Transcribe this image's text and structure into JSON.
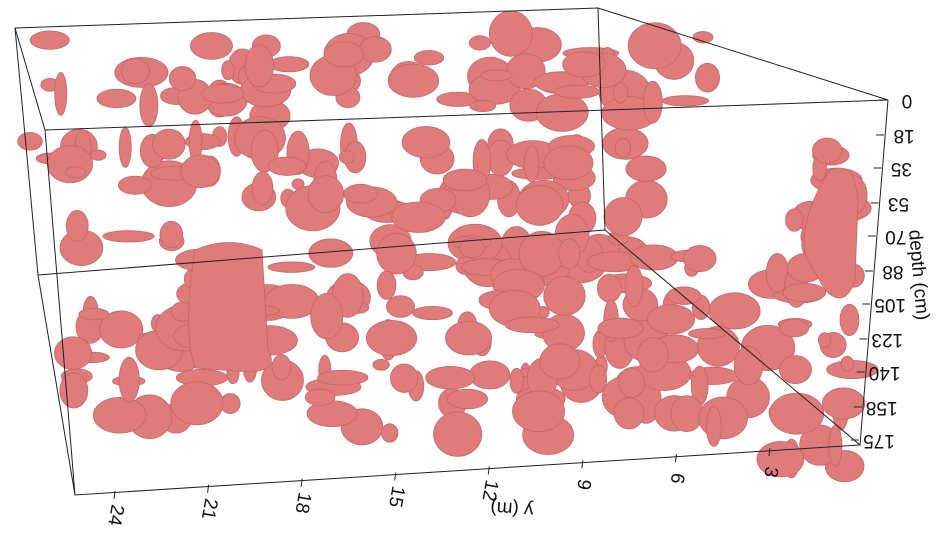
{
  "axes": {
    "depth": {
      "label": "depth (cm)",
      "ticks": [
        0,
        18,
        35,
        53,
        70,
        88,
        105,
        123,
        140,
        158,
        175
      ]
    },
    "y": {
      "label": "y (m)",
      "ticks": [
        3,
        6,
        9,
        12,
        15,
        18,
        21,
        24
      ]
    }
  }
}
